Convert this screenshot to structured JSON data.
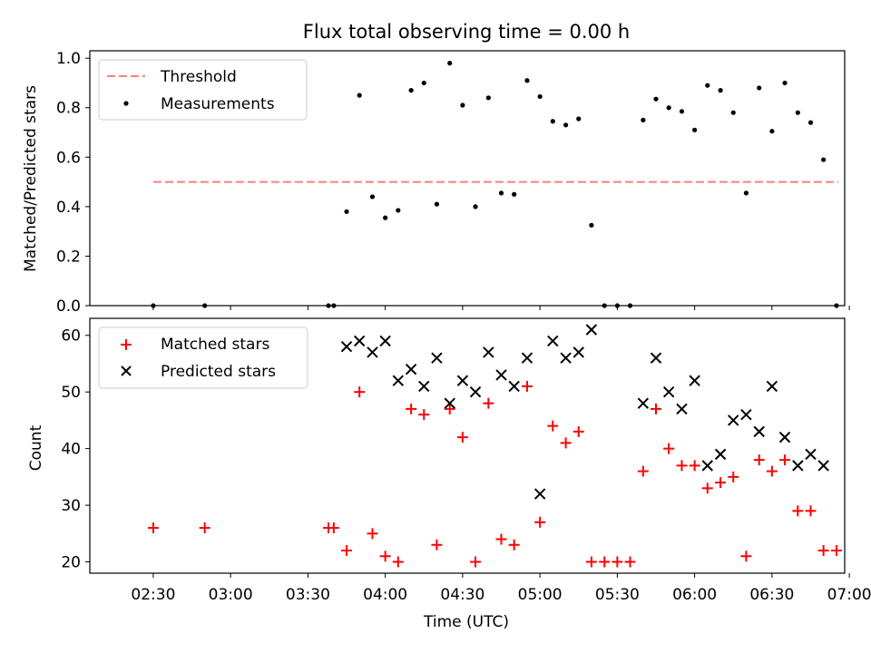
{
  "title": "Flux total observing time = 0.00 h",
  "xlabel": "Time (UTC)",
  "colors": {
    "threshold": "#ff7f7f",
    "measurement": "#000000",
    "matched": "#ff0000",
    "predicted": "#000000"
  },
  "x_ticks": [
    {
      "t": 2.5,
      "label": "02:30"
    },
    {
      "t": 3.0,
      "label": "03:00"
    },
    {
      "t": 3.5,
      "label": "03:30"
    },
    {
      "t": 4.0,
      "label": "04:00"
    },
    {
      "t": 4.5,
      "label": "04:30"
    },
    {
      "t": 5.0,
      "label": "05:00"
    },
    {
      "t": 5.5,
      "label": "05:30"
    },
    {
      "t": 6.0,
      "label": "06:00"
    },
    {
      "t": 6.5,
      "label": "06:30"
    },
    {
      "t": 7.0,
      "label": "07:00"
    }
  ],
  "x_range_hours": [
    2.09,
    6.97
  ],
  "chart_data": [
    {
      "type": "scatter",
      "ylabel": "Matched/Predicted stars",
      "ylim": [
        0,
        1.03
      ],
      "y_ticks": [
        {
          "v": 0.0,
          "label": "0.0"
        },
        {
          "v": 0.2,
          "label": "0.2"
        },
        {
          "v": 0.4,
          "label": "0.4"
        },
        {
          "v": 0.6,
          "label": "0.6"
        },
        {
          "v": 0.8,
          "label": "0.8"
        },
        {
          "v": 1.0,
          "label": "1.0"
        }
      ],
      "legend": {
        "placement": "top-left",
        "threshold_label": "Threshold",
        "measurements_label": "Measurements"
      },
      "threshold": {
        "value": 0.5,
        "x_start": 2.5,
        "x_end": 6.93
      },
      "measurements": {
        "x": [
          2.5,
          2.833,
          3.633,
          3.667,
          3.75,
          3.833,
          3.917,
          4.0,
          4.083,
          4.167,
          4.25,
          4.333,
          4.417,
          4.5,
          4.583,
          4.667,
          4.75,
          4.833,
          4.917,
          5.0,
          5.083,
          5.167,
          5.25,
          5.333,
          5.417,
          5.5,
          5.583,
          5.667,
          5.75,
          5.833,
          5.917,
          6.0,
          6.083,
          6.167,
          6.25,
          6.333,
          6.417,
          6.5,
          6.583,
          6.667,
          6.75,
          6.833,
          6.917
        ],
        "y": [
          0.0,
          0.0,
          0.0,
          0.0,
          0.38,
          0.85,
          0.44,
          0.355,
          0.385,
          0.87,
          0.9,
          0.41,
          0.98,
          0.81,
          0.4,
          0.84,
          0.455,
          0.45,
          0.91,
          0.845,
          0.745,
          0.73,
          0.755,
          0.325,
          0.0,
          0.0,
          0.0,
          0.75,
          0.835,
          0.8,
          0.785,
          0.71,
          0.89,
          0.87,
          0.78,
          0.455,
          0.88,
          0.705,
          0.9,
          0.78,
          0.74,
          0.59,
          0.0
        ]
      }
    },
    {
      "type": "scatter",
      "ylabel": "Count",
      "ylim": [
        18,
        63
      ],
      "y_ticks": [
        {
          "v": 20,
          "label": "20"
        },
        {
          "v": 30,
          "label": "30"
        },
        {
          "v": 40,
          "label": "40"
        },
        {
          "v": 50,
          "label": "50"
        },
        {
          "v": 60,
          "label": "60"
        }
      ],
      "legend": {
        "placement": "top-left",
        "matched_label": "Matched stars",
        "predicted_label": "Predicted stars"
      },
      "matched": {
        "x": [
          2.5,
          2.833,
          3.633,
          3.667,
          3.75,
          3.833,
          3.917,
          4.0,
          4.083,
          4.167,
          4.25,
          4.333,
          4.417,
          4.5,
          4.583,
          4.667,
          4.75,
          4.833,
          4.917,
          5.0,
          5.083,
          5.167,
          5.25,
          5.333,
          5.417,
          5.5,
          5.583,
          5.667,
          5.75,
          5.833,
          5.917,
          6.0,
          6.083,
          6.167,
          6.25,
          6.333,
          6.417,
          6.5,
          6.583,
          6.667,
          6.75,
          6.833,
          6.917
        ],
        "y": [
          26,
          26,
          26,
          26,
          22,
          50,
          25,
          21,
          20,
          47,
          46,
          23,
          47,
          42,
          20,
          48,
          24,
          23,
          51,
          27,
          44,
          41,
          43,
          20,
          20,
          20,
          20,
          36,
          47,
          40,
          37,
          37,
          33,
          34,
          35,
          21,
          38,
          36,
          38,
          29,
          29,
          22,
          22
        ]
      },
      "predicted": {
        "x": [
          3.75,
          3.833,
          3.917,
          4.0,
          4.083,
          4.167,
          4.25,
          4.333,
          4.417,
          4.5,
          4.583,
          4.667,
          4.75,
          4.833,
          4.917,
          5.0,
          5.083,
          5.167,
          5.25,
          5.333,
          5.667,
          5.75,
          5.833,
          5.917,
          6.0,
          6.083,
          6.167,
          6.25,
          6.333,
          6.417,
          6.5,
          6.583,
          6.667,
          6.75,
          6.833
        ],
        "y": [
          58,
          59,
          57,
          59,
          52,
          54,
          51,
          56,
          48,
          52,
          50,
          57,
          53,
          51,
          56,
          32,
          59,
          56,
          57,
          61,
          48,
          56,
          50,
          47,
          52,
          37,
          39,
          45,
          46,
          43,
          51,
          42,
          37,
          39,
          37
        ]
      }
    }
  ]
}
